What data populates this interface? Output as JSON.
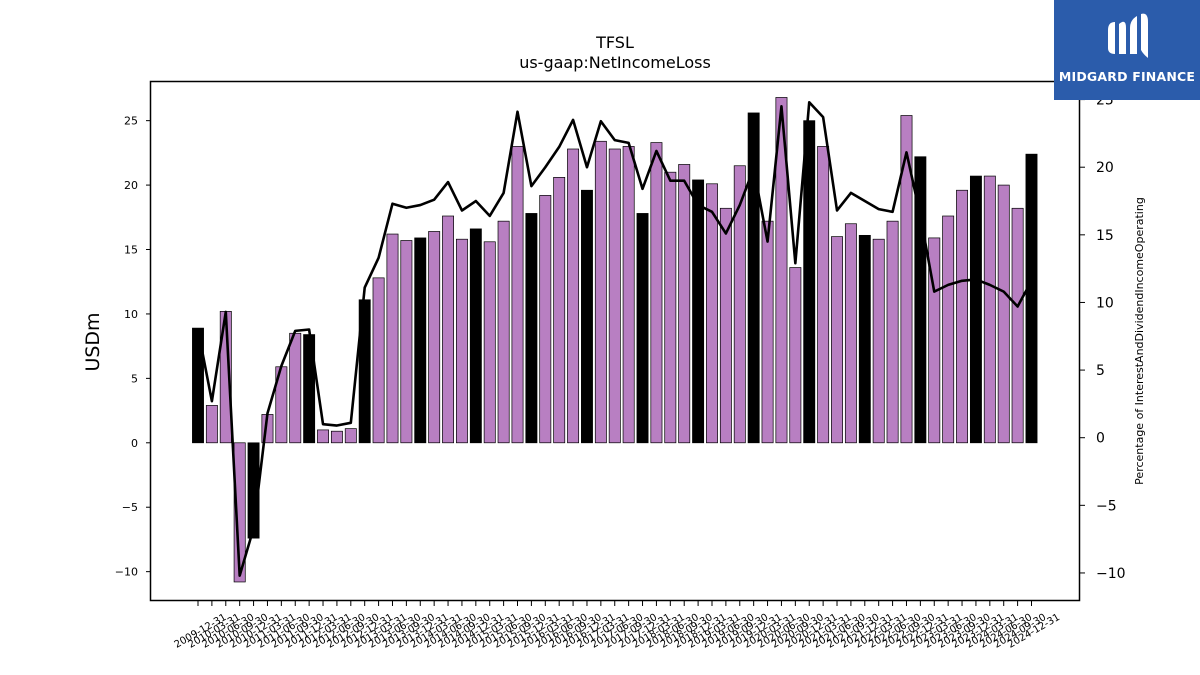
{
  "chart_data": {
    "type": "bar+line",
    "title": "TFSL",
    "subtitle": "us-gaap:NetIncomeLoss",
    "ylabel": "USDm",
    "y2label": "Percentage of InterestAndDividendIncomeOperating",
    "ylim": [
      -12.2,
      28.0
    ],
    "y2lim": [
      -12.0,
      26.3
    ],
    "yticks": [
      -10,
      -5,
      0,
      5,
      10,
      15,
      20,
      25
    ],
    "y2ticks": [
      -10,
      -5,
      0,
      5,
      10,
      15,
      20,
      25
    ],
    "categories": [
      "2009-12-31",
      "2010-03-31",
      "2010-06-30",
      "2010-09-30",
      "2010-12-31",
      "2011-03-31",
      "2011-06-30",
      "2011-09-30",
      "2011-12-31",
      "2012-03-31",
      "2012-06-30",
      "2012-09-30",
      "2012-12-31",
      "2013-03-31",
      "2013-06-30",
      "2013-09-30",
      "2013-12-31",
      "2014-03-31",
      "2014-06-30",
      "2014-09-30",
      "2014-12-31",
      "2015-03-31",
      "2015-06-30",
      "2015-09-30",
      "2015-12-31",
      "2016-03-31",
      "2016-06-30",
      "2016-09-30",
      "2016-12-31",
      "2017-03-31",
      "2017-06-30",
      "2017-09-30",
      "2017-12-31",
      "2018-03-31",
      "2018-06-30",
      "2018-09-30",
      "2018-12-31",
      "2019-03-31",
      "2019-06-30",
      "2019-09-30",
      "2019-12-31",
      "2020-03-31",
      "2020-06-30",
      "2020-09-30",
      "2020-12-31",
      "2021-03-31",
      "2021-06-30",
      "2021-09-30",
      "2021-12-31",
      "2022-03-31",
      "2022-06-30",
      "2022-09-30",
      "2022-12-31",
      "2023-03-31",
      "2023-06-30",
      "2023-09-30",
      "2023-12-31",
      "2024-03-31",
      "2024-06-30",
      "2024-09-30",
      "2024-12-31"
    ],
    "series": [
      {
        "kind": "bar",
        "axis": "left",
        "values": [
          8.9,
          2.9,
          10.2,
          -10.8,
          -7.4,
          2.2,
          5.9,
          8.5,
          8.4,
          1.0,
          0.9,
          1.1,
          11.1,
          12.8,
          16.2,
          15.7,
          15.9,
          16.4,
          17.6,
          15.8,
          16.6,
          15.6,
          17.2,
          23.0,
          17.8,
          19.2,
          20.6,
          22.8,
          19.6,
          23.4,
          22.8,
          23.0,
          17.8,
          23.3,
          21.0,
          21.6,
          20.4,
          20.1,
          18.2,
          21.5,
          25.6,
          17.2,
          26.8,
          13.6,
          25.0,
          23.0,
          16.0,
          17.0,
          16.1,
          15.8,
          17.2,
          25.4,
          22.2,
          15.9,
          17.6,
          19.6,
          20.7,
          20.7,
          20.0,
          18.2,
          22.4
        ],
        "colors": [
          "#000000",
          "#b87fc2",
          "#b87fc2",
          "#b87fc2",
          "#000000",
          "#b87fc2",
          "#b87fc2",
          "#b87fc2",
          "#000000",
          "#b87fc2",
          "#b87fc2",
          "#b87fc2",
          "#000000",
          "#b87fc2",
          "#b87fc2",
          "#b87fc2",
          "#000000",
          "#b87fc2",
          "#b87fc2",
          "#b87fc2",
          "#000000",
          "#b87fc2",
          "#b87fc2",
          "#b87fc2",
          "#000000",
          "#b87fc2",
          "#b87fc2",
          "#b87fc2",
          "#000000",
          "#b87fc2",
          "#b87fc2",
          "#b87fc2",
          "#000000",
          "#b87fc2",
          "#b87fc2",
          "#b87fc2",
          "#000000",
          "#b87fc2",
          "#b87fc2",
          "#b87fc2",
          "#000000",
          "#b87fc2",
          "#b87fc2",
          "#b87fc2",
          "#000000",
          "#b87fc2",
          "#b87fc2",
          "#b87fc2",
          "#000000",
          "#b87fc2",
          "#b87fc2",
          "#b87fc2",
          "#000000",
          "#b87fc2",
          "#b87fc2",
          "#b87fc2",
          "#000000",
          "#b87fc2",
          "#b87fc2",
          "#b87fc2",
          "#000000"
        ]
      },
      {
        "kind": "line",
        "axis": "right",
        "color": "#000000",
        "values": [
          8.0,
          2.7,
          9.3,
          -10.2,
          -6.7,
          1.8,
          5.3,
          7.9,
          8.0,
          1.0,
          0.9,
          1.1,
          11.1,
          13.3,
          17.3,
          17.0,
          17.2,
          17.6,
          18.9,
          16.8,
          17.5,
          16.4,
          18.1,
          24.1,
          18.6,
          20.0,
          21.5,
          23.5,
          20.0,
          23.4,
          22.0,
          21.8,
          18.4,
          21.2,
          19.0,
          19.0,
          17.2,
          16.7,
          15.1,
          17.2,
          19.9,
          14.5,
          24.5,
          12.9,
          24.8,
          23.7,
          16.8,
          18.1,
          17.5,
          16.9,
          16.7,
          21.1,
          16.4,
          10.8,
          11.3,
          11.6,
          11.7,
          11.3,
          10.8,
          9.7,
          11.6
        ]
      }
    ],
    "grid": false
  },
  "logo": {
    "text": "MIDGARD FINANCE",
    "bg_color": "#2b5cab"
  }
}
